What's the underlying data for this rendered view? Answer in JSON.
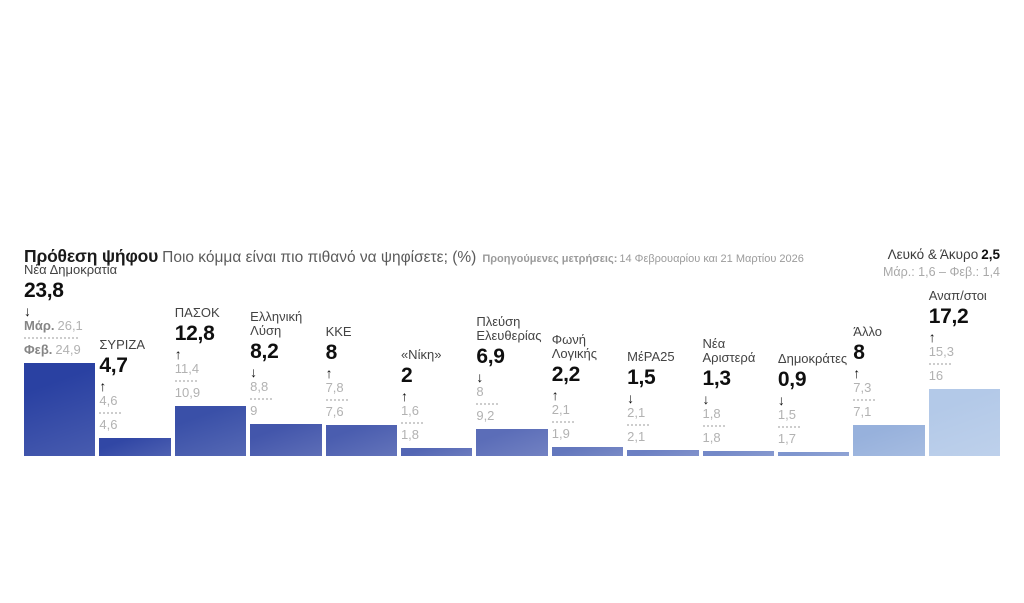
{
  "header": {
    "title": "Πρόθεση ψήφου",
    "subtitle": "Ποιο κόμμα είναι πιο πιθανό να ψηφίσετε; (%)",
    "note_label": "Προηγούμενες μετρήσεις:",
    "note_text": "14 Φεβρουαρίου και 21 Μαρτίου 2026",
    "blank_invalid_label": "Λευκό & Άκυρο",
    "blank_invalid_value": "2,5",
    "blank_invalid_prev": "Μάρ.: 1,6 – Φεβ.: 1,4"
  },
  "icons": {
    "arrow-up": "↑",
    "arrow-down": "↓"
  },
  "chart_data": {
    "type": "bar",
    "title": "Πρόθεση ψήφου",
    "subtitle": "Ποιο κόμμα είναι πιο πιθανό να ψηφίσετε; (%)",
    "unit": "%",
    "ylim": [
      0,
      26
    ],
    "grid": false,
    "value_label_position": "above-bar",
    "previous_measurements": [
      "14 Φεβρουαρίου 2026",
      "21 Μαρτίου 2026"
    ],
    "parties": [
      {
        "name": "Νέα Δημοκρατία",
        "value": "23,8",
        "value_num": 23.8,
        "trend": "down",
        "prev_march_prefix": "Μάρ.",
        "prev_march": "26,1",
        "prev_february_prefix": "Φεβ.",
        "prev_february": "24,9",
        "color": "#2A41A2"
      },
      {
        "name": "ΣΥΡΙΖΑ",
        "value": "4,7",
        "value_num": 4.7,
        "trend": "up",
        "prev_march_prefix": "",
        "prev_march": "4,6",
        "prev_february_prefix": "",
        "prev_february": "4,6",
        "color": "#3147A5"
      },
      {
        "name": "ΠΑΣΟΚ",
        "value": "12,8",
        "value_num": 12.8,
        "trend": "up",
        "prev_march_prefix": "",
        "prev_march": "11,4",
        "prev_february_prefix": "",
        "prev_february": "10,9",
        "color": "#3A50A8"
      },
      {
        "name": "Ελληνική\nΛύση",
        "value": "8,2",
        "value_num": 8.2,
        "trend": "down",
        "prev_march_prefix": "",
        "prev_march": "8,8",
        "prev_february_prefix": "",
        "prev_february": "9",
        "color": "#4356AB"
      },
      {
        "name": "ΚΚΕ",
        "value": "8",
        "value_num": 8,
        "trend": "up",
        "prev_march_prefix": "",
        "prev_march": "7,8",
        "prev_february_prefix": "",
        "prev_february": "7,6",
        "color": "#4A5DAF"
      },
      {
        "name": "«Νίκη»",
        "value": "2",
        "value_num": 2,
        "trend": "up",
        "prev_march_prefix": "",
        "prev_march": "1,6",
        "prev_february_prefix": "",
        "prev_february": "1,8",
        "color": "#5366B4"
      },
      {
        "name": "Πλεύση\nΕλευθερίας",
        "value": "6,9",
        "value_num": 6.9,
        "trend": "down",
        "prev_march_prefix": "",
        "prev_march": "8",
        "prev_february_prefix": "",
        "prev_february": "9,2",
        "color": "#5B6DB8"
      },
      {
        "name": "Φωνή\nΛογικής",
        "value": "2,2",
        "value_num": 2.2,
        "trend": "up",
        "prev_march_prefix": "",
        "prev_march": "2,1",
        "prev_february_prefix": "",
        "prev_february": "1,9",
        "color": "#6377BD"
      },
      {
        "name": "ΜέΡΑ25",
        "value": "1,5",
        "value_num": 1.5,
        "trend": "down",
        "prev_march_prefix": "",
        "prev_march": "2,1",
        "prev_february_prefix": "",
        "prev_february": "2,1",
        "color": "#6C80C3"
      },
      {
        "name": "Νέα\nΑριστερά",
        "value": "1,3",
        "value_num": 1.3,
        "trend": "down",
        "prev_march_prefix": "",
        "prev_march": "1,8",
        "prev_february_prefix": "",
        "prev_february": "1,8",
        "color": "#7489C8"
      },
      {
        "name": "Δημοκράτες",
        "value": "0,9",
        "value_num": 0.9,
        "trend": "down",
        "prev_march_prefix": "",
        "prev_march": "1,5",
        "prev_february_prefix": "",
        "prev_february": "1,7",
        "color": "#7E95CE"
      },
      {
        "name": "Άλλο",
        "value": "8",
        "value_num": 8,
        "trend": "up",
        "prev_march_prefix": "",
        "prev_march": "7,3",
        "prev_february_prefix": "",
        "prev_february": "7,1",
        "color": "#97B1DC"
      },
      {
        "name": "Αναπ/στοι",
        "value": "17,2",
        "value_num": 17.2,
        "trend": "up",
        "prev_march_prefix": "",
        "prev_march": "15,3",
        "prev_february_prefix": "",
        "prev_february": "16",
        "color": "#B3C9E8"
      }
    ]
  }
}
